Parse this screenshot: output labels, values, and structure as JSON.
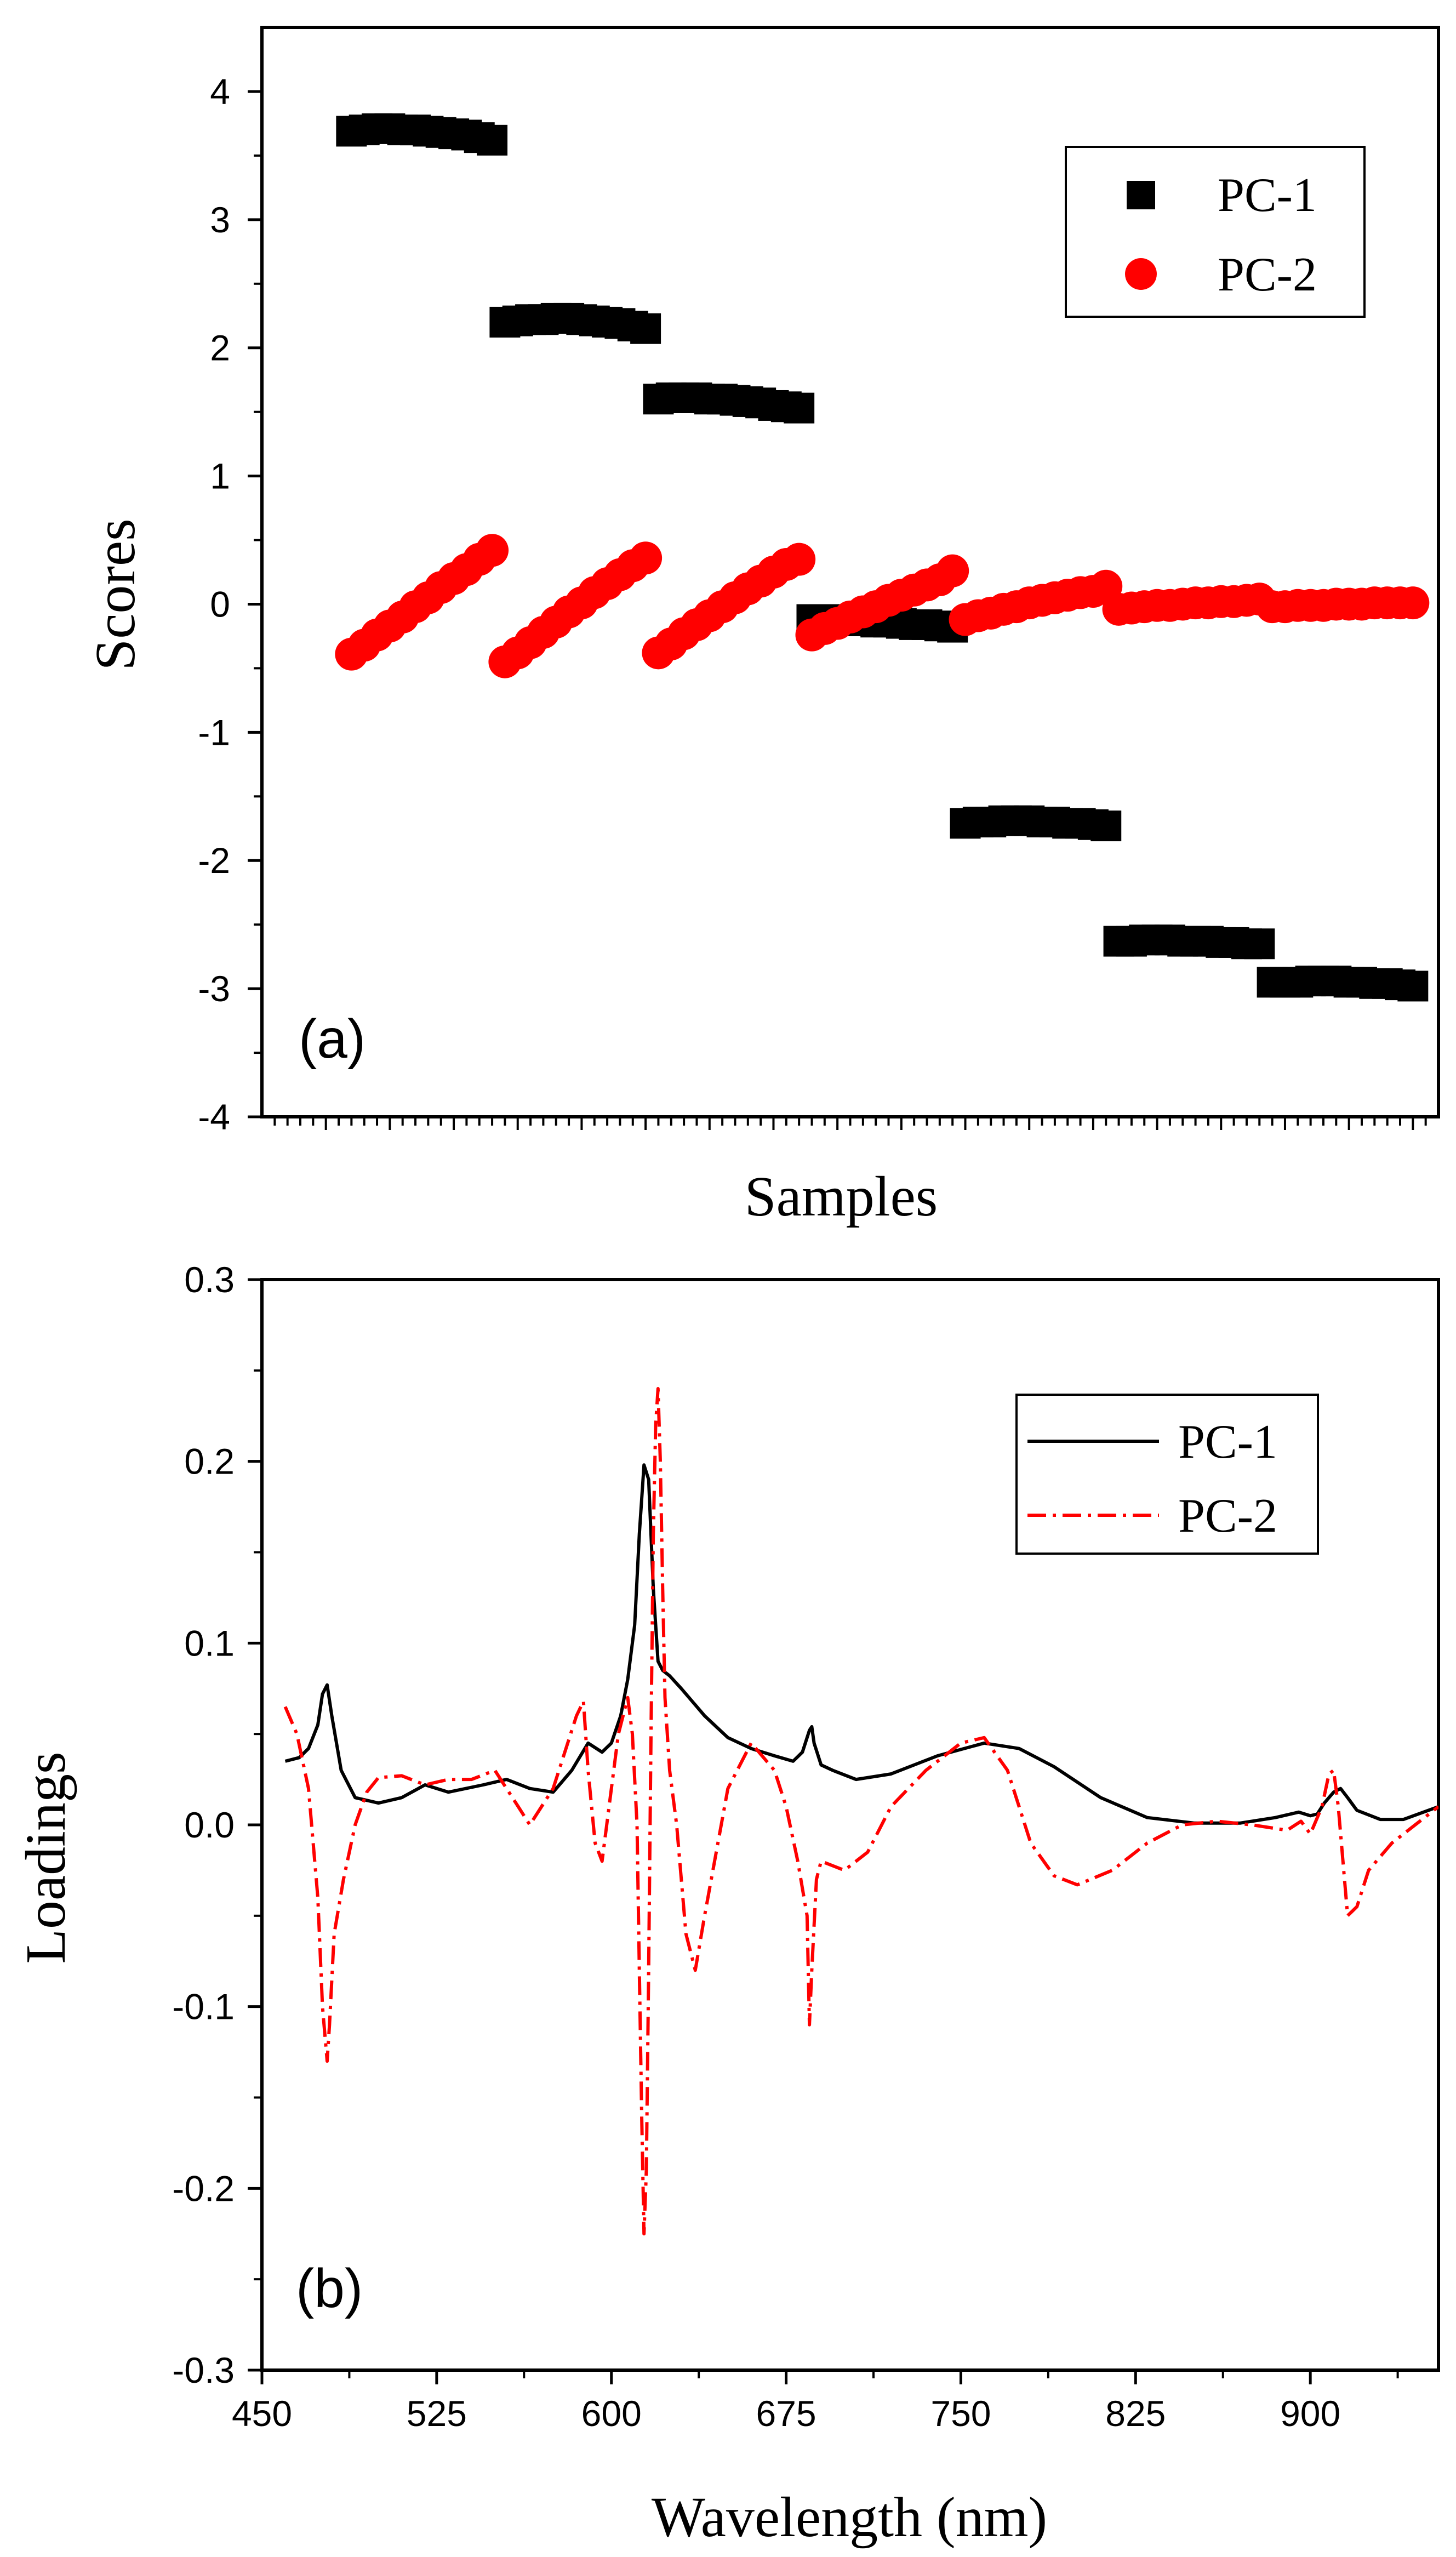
{
  "chart_data": [
    {
      "type": "scatter",
      "panel_label": "(a)",
      "xlabel": "Samples",
      "ylabel": "Scores",
      "ylim": [
        -4,
        4.5
      ],
      "yticks": [
        4,
        3,
        2,
        1,
        0,
        -1,
        -2,
        -3,
        -4
      ],
      "ytick_labels": [
        "4",
        "3",
        "2",
        "1",
        "0",
        "-1",
        "-2",
        "-3",
        "-4"
      ],
      "xlim": [
        0,
        92
      ],
      "x_tick_labels_shown": false,
      "legend_position": "top-right",
      "series": [
        {
          "name": "PC-1",
          "marker": "square",
          "color": "#000000",
          "x": [
            7,
            8,
            9,
            10,
            11,
            12,
            13,
            14,
            15,
            16,
            17,
            18,
            19,
            20,
            21,
            22,
            23,
            24,
            25,
            26,
            27,
            28,
            29,
            30,
            31,
            32,
            33,
            34,
            35,
            36,
            37,
            38,
            39,
            40,
            41,
            42,
            43,
            44,
            45,
            46,
            47,
            48,
            49,
            50,
            51,
            52,
            53,
            54,
            55,
            56,
            57,
            58,
            59,
            60,
            61,
            62,
            63,
            64,
            65,
            66,
            67,
            68,
            69,
            70,
            71,
            72,
            73,
            74,
            75,
            76,
            77,
            78,
            79,
            80,
            81,
            82,
            83,
            84,
            85,
            86,
            87,
            88,
            89,
            90
          ],
          "y": [
            3.69,
            3.7,
            3.71,
            3.71,
            3.7,
            3.7,
            3.69,
            3.68,
            3.67,
            3.66,
            3.64,
            3.62,
            2.2,
            2.21,
            2.22,
            2.22,
            2.23,
            2.23,
            2.22,
            2.21,
            2.2,
            2.19,
            2.17,
            2.15,
            1.6,
            1.61,
            1.61,
            1.61,
            1.6,
            1.6,
            1.59,
            1.58,
            1.57,
            1.55,
            1.54,
            1.53,
            -0.12,
            -0.12,
            -0.12,
            -0.13,
            -0.13,
            -0.14,
            -0.14,
            -0.15,
            -0.16,
            -0.16,
            -0.17,
            -0.18,
            -1.71,
            -1.7,
            -1.7,
            -1.69,
            -1.69,
            -1.69,
            -1.7,
            -1.7,
            -1.71,
            -1.71,
            -1.72,
            -1.73,
            -2.63,
            -2.63,
            -2.62,
            -2.62,
            -2.62,
            -2.63,
            -2.63,
            -2.63,
            -2.64,
            -2.64,
            -2.65,
            -2.65,
            -2.95,
            -2.95,
            -2.95,
            -2.94,
            -2.94,
            -2.94,
            -2.95,
            -2.95,
            -2.96,
            -2.96,
            -2.97,
            -2.98
          ]
        },
        {
          "name": "PC-2",
          "marker": "circle",
          "color": "#ff0000",
          "x": [
            7,
            8,
            9,
            10,
            11,
            12,
            13,
            14,
            15,
            16,
            17,
            18,
            19,
            20,
            21,
            22,
            23,
            24,
            25,
            26,
            27,
            28,
            29,
            30,
            31,
            32,
            33,
            34,
            35,
            36,
            37,
            38,
            39,
            40,
            41,
            42,
            43,
            44,
            45,
            46,
            47,
            48,
            49,
            50,
            51,
            52,
            53,
            54,
            55,
            56,
            57,
            58,
            59,
            60,
            61,
            62,
            63,
            64,
            65,
            66,
            67,
            68,
            69,
            70,
            71,
            72,
            73,
            74,
            75,
            76,
            77,
            78,
            79,
            80,
            81,
            82,
            83,
            84,
            85,
            86,
            87,
            88,
            89,
            90
          ],
          "y": [
            -0.39,
            -0.32,
            -0.24,
            -0.17,
            -0.1,
            -0.02,
            0.05,
            0.13,
            0.2,
            0.27,
            0.35,
            0.42,
            -0.45,
            -0.38,
            -0.3,
            -0.22,
            -0.14,
            -0.06,
            0.01,
            0.09,
            0.16,
            0.23,
            0.3,
            0.36,
            -0.38,
            -0.31,
            -0.23,
            -0.16,
            -0.09,
            -0.02,
            0.05,
            0.12,
            0.18,
            0.25,
            0.31,
            0.35,
            -0.24,
            -0.19,
            -0.15,
            -0.1,
            -0.06,
            -0.02,
            0.03,
            0.07,
            0.11,
            0.15,
            0.19,
            0.26,
            -0.12,
            -0.09,
            -0.07,
            -0.04,
            -0.02,
            0.01,
            0.03,
            0.05,
            0.07,
            0.09,
            0.1,
            0.14,
            -0.04,
            -0.03,
            -0.02,
            -0.01,
            -0.01,
            0.0,
            0.01,
            0.01,
            0.02,
            0.02,
            0.03,
            0.04,
            -0.02,
            -0.02,
            -0.01,
            -0.01,
            -0.01,
            0.0,
            0.0,
            0.0,
            0.01,
            0.01,
            0.01,
            0.01
          ]
        }
      ]
    },
    {
      "type": "line",
      "panel_label": "(b)",
      "xlabel": "Wavelength (nm)",
      "ylabel": "Loadings",
      "xlim": [
        450,
        955
      ],
      "xticks": [
        450,
        525,
        600,
        675,
        750,
        825,
        900
      ],
      "xtick_labels": [
        "450",
        "525",
        "600",
        "675",
        "750",
        "825",
        "900"
      ],
      "ylim": [
        -0.3,
        0.3
      ],
      "yticks": [
        0.3,
        0.2,
        0.1,
        0.0,
        -0.1,
        -0.2,
        -0.3
      ],
      "ytick_labels": [
        "0.3",
        "0.2",
        "0.1",
        "0.0",
        "-0.1",
        "-0.2",
        "-0.3"
      ],
      "legend_position": "top-right",
      "series": [
        {
          "name": "PC-1",
          "style": "solid",
          "color": "#000000",
          "x": [
            460,
            466,
            470,
            474,
            476,
            478,
            480,
            484,
            490,
            500,
            510,
            520,
            530,
            545,
            555,
            565,
            575,
            583,
            590,
            596,
            600,
            604,
            607,
            610,
            612,
            614,
            616,
            618,
            620,
            622,
            625,
            630,
            640,
            650,
            660,
            670,
            678,
            682,
            685,
            686,
            687,
            690,
            695,
            705,
            720,
            740,
            760,
            775,
            790,
            810,
            830,
            850,
            870,
            885,
            895,
            900,
            903,
            906,
            910,
            913,
            916,
            920,
            930,
            940,
            955
          ],
          "y": [
            0.035,
            0.037,
            0.042,
            0.055,
            0.072,
            0.077,
            0.06,
            0.03,
            0.015,
            0.012,
            0.015,
            0.022,
            0.018,
            0.022,
            0.025,
            0.02,
            0.018,
            0.03,
            0.045,
            0.04,
            0.045,
            0.06,
            0.08,
            0.11,
            0.16,
            0.198,
            0.19,
            0.13,
            0.09,
            0.085,
            0.082,
            0.075,
            0.06,
            0.048,
            0.042,
            0.038,
            0.035,
            0.04,
            0.052,
            0.054,
            0.045,
            0.033,
            0.03,
            0.025,
            0.028,
            0.038,
            0.045,
            0.042,
            0.032,
            0.015,
            0.004,
            0.001,
            0.001,
            0.004,
            0.007,
            0.005,
            0.006,
            0.012,
            0.018,
            0.02,
            0.015,
            0.008,
            0.003,
            0.003,
            0.01
          ]
        },
        {
          "name": "PC-2",
          "style": "dash-dot",
          "color": "#ff0000",
          "x": [
            460,
            465,
            470,
            474,
            476,
            478,
            479,
            481,
            485,
            490,
            495,
            500,
            510,
            520,
            530,
            540,
            550,
            560,
            565,
            570,
            575,
            580,
            585,
            588,
            590,
            593,
            596,
            600,
            603,
            605,
            607,
            609,
            611,
            612,
            613,
            614,
            615,
            616,
            617,
            618,
            619,
            620,
            621,
            622,
            623,
            625,
            628,
            632,
            636,
            640,
            650,
            660,
            670,
            675,
            680,
            684,
            685,
            686,
            688,
            690,
            700,
            710,
            720,
            735,
            750,
            760,
            770,
            780,
            790,
            800,
            815,
            830,
            845,
            860,
            875,
            890,
            896,
            900,
            905,
            908,
            910,
            912,
            914,
            916,
            920,
            925,
            935,
            945,
            955
          ],
          "y": [
            0.065,
            0.05,
            0.02,
            -0.04,
            -0.1,
            -0.13,
            -0.11,
            -0.06,
            -0.03,
            0.0,
            0.018,
            0.026,
            0.027,
            0.022,
            0.025,
            0.025,
            0.03,
            0.01,
            0.0,
            0.01,
            0.02,
            0.04,
            0.06,
            0.068,
            0.03,
            -0.01,
            -0.02,
            0.02,
            0.05,
            0.06,
            0.07,
            0.05,
            0.0,
            -0.08,
            -0.16,
            -0.225,
            -0.19,
            -0.08,
            0.05,
            0.16,
            0.22,
            0.24,
            0.2,
            0.13,
            0.07,
            0.03,
            0.0,
            -0.06,
            -0.08,
            -0.05,
            0.02,
            0.045,
            0.03,
            0.01,
            -0.02,
            -0.05,
            -0.11,
            -0.08,
            -0.03,
            -0.02,
            -0.025,
            -0.015,
            0.01,
            0.03,
            0.045,
            0.048,
            0.03,
            -0.01,
            -0.028,
            -0.033,
            -0.025,
            -0.01,
            0.0,
            0.002,
            0.0,
            -0.003,
            0.002,
            -0.005,
            0.01,
            0.028,
            0.03,
            0.01,
            -0.02,
            -0.05,
            -0.045,
            -0.025,
            -0.01,
            0.0,
            0.01
          ]
        }
      ]
    }
  ]
}
